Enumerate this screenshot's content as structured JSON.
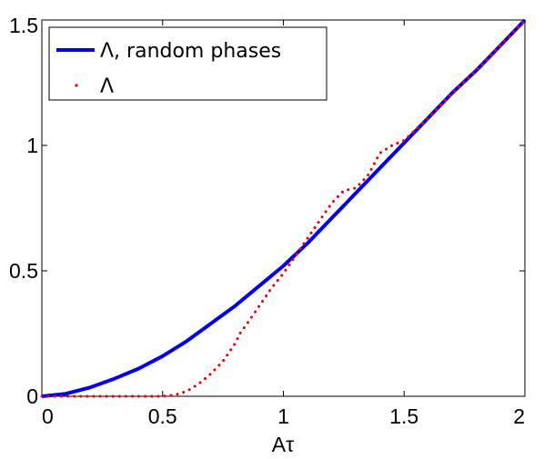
{
  "chart_data": {
    "type": "line",
    "xlabel": "Aτ",
    "ylabel": "",
    "xlim": [
      0,
      2
    ],
    "ylim": [
      0,
      1.5
    ],
    "xticks": [
      "0",
      "0.5",
      "1",
      "1.5",
      "2"
    ],
    "yticks": [
      "0",
      "0.5",
      "1",
      "1.5"
    ],
    "grid": false,
    "legend_position": "top-left",
    "series": [
      {
        "name": "Λ, random phases",
        "style": "solid",
        "color": "#0000ee",
        "x": [
          0,
          0.1,
          0.2,
          0.3,
          0.4,
          0.5,
          0.6,
          0.7,
          0.8,
          0.9,
          1.0,
          1.1,
          1.2,
          1.3,
          1.4,
          1.5,
          1.6,
          1.7,
          1.8,
          1.9,
          2.0
        ],
        "y": [
          0,
          0.01,
          0.035,
          0.07,
          0.11,
          0.16,
          0.22,
          0.29,
          0.36,
          0.44,
          0.52,
          0.61,
          0.71,
          0.81,
          0.91,
          1.01,
          1.11,
          1.21,
          1.3,
          1.4,
          1.5
        ]
      },
      {
        "name": "Λ",
        "style": "dotted",
        "color": "#ee0000",
        "x": [
          0,
          0.1,
          0.2,
          0.3,
          0.4,
          0.5,
          0.55,
          0.6,
          0.65,
          0.7,
          0.75,
          0.8,
          0.82,
          0.85,
          0.9,
          0.95,
          1.0,
          1.05,
          1.1,
          1.15,
          1.2,
          1.25,
          1.3,
          1.35,
          1.4,
          1.45,
          1.5,
          1.6,
          1.7,
          1.8,
          1.9,
          2.0
        ],
        "y": [
          0,
          0,
          0,
          0,
          0,
          0,
          0.005,
          0.02,
          0.05,
          0.09,
          0.14,
          0.21,
          0.25,
          0.29,
          0.36,
          0.43,
          0.49,
          0.56,
          0.63,
          0.7,
          0.77,
          0.82,
          0.83,
          0.88,
          0.97,
          1.0,
          1.02,
          1.11,
          1.21,
          1.3,
          1.4,
          1.5
        ]
      }
    ]
  }
}
